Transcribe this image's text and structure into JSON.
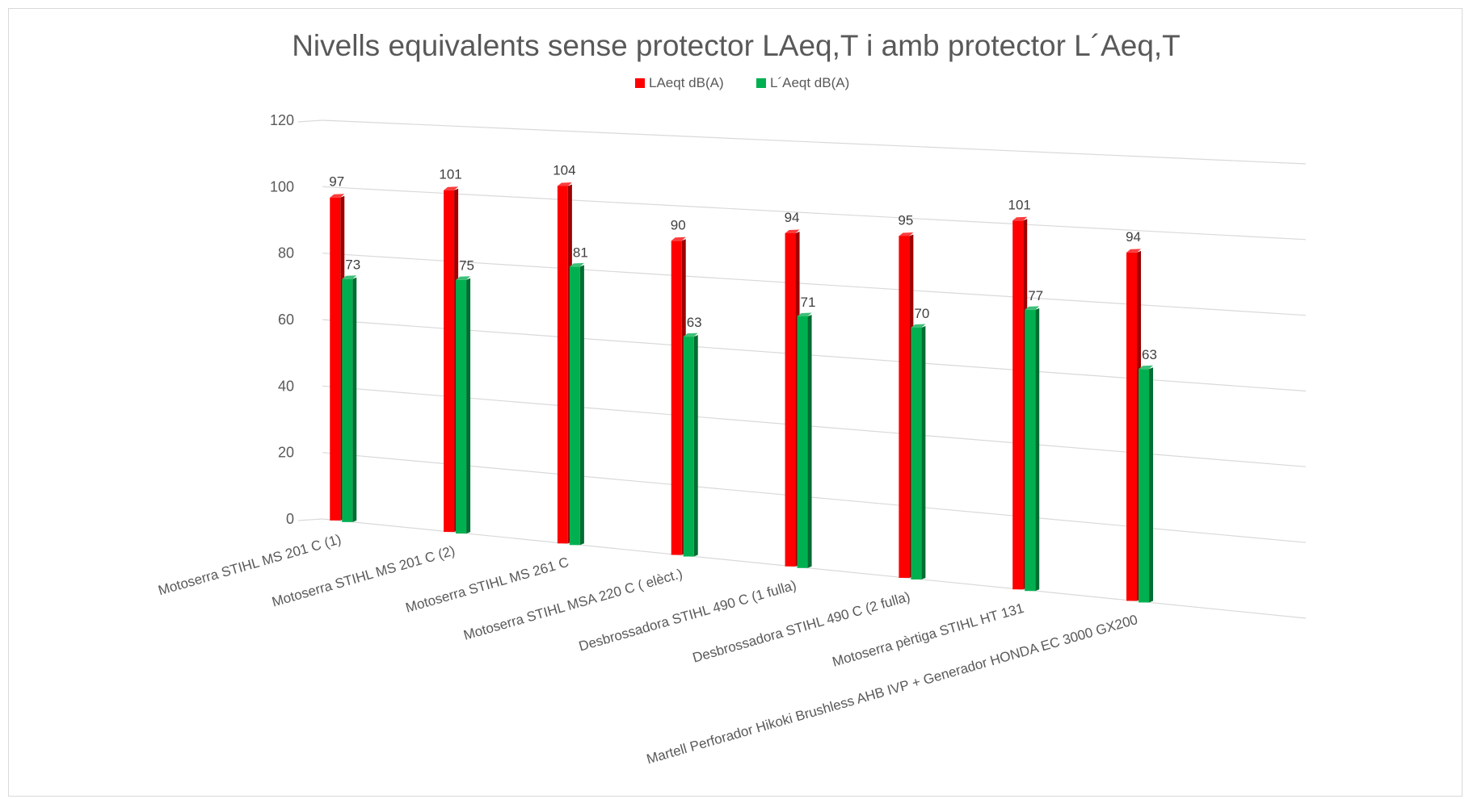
{
  "chart_data": {
    "type": "bar",
    "title": "Nivells equivalents sense protector LAeq,T i amb protector L´Aeq,T",
    "categories": [
      "Motoserra STIHL MS 201 C (1)",
      "Motoserra STIHL MS 201 C (2)",
      "Motoserra STIHL MS 261 C",
      "Motoserra STIHL MSA 220 C ( elèct.)",
      "Desbrossadora STIHL 490 C (1 fulla)",
      "Desbrossadora STIHL 490 C (2 fulla)",
      "Motoserra pèrtiga STIHL HT 131",
      "Martell Perforador Hikoki Brushless AHB IVP + Generador HONDA EC 3000 GX200"
    ],
    "series": [
      {
        "name": "LAeqt dB(A)",
        "color": "#ff0000",
        "values": [
          97,
          101,
          104,
          90,
          94,
          95,
          101,
          94
        ]
      },
      {
        "name": "L´Aeqt dB(A)",
        "color": "#00b050",
        "values": [
          73,
          75,
          81,
          63,
          71,
          70,
          77,
          63
        ]
      }
    ],
    "y_ticks": [
      "0",
      "20",
      "40",
      "60",
      "80",
      "100",
      "120"
    ],
    "ylim": [
      0,
      120
    ],
    "grid": true,
    "legend_position": "top",
    "perspective": "3d-clustered-column"
  }
}
